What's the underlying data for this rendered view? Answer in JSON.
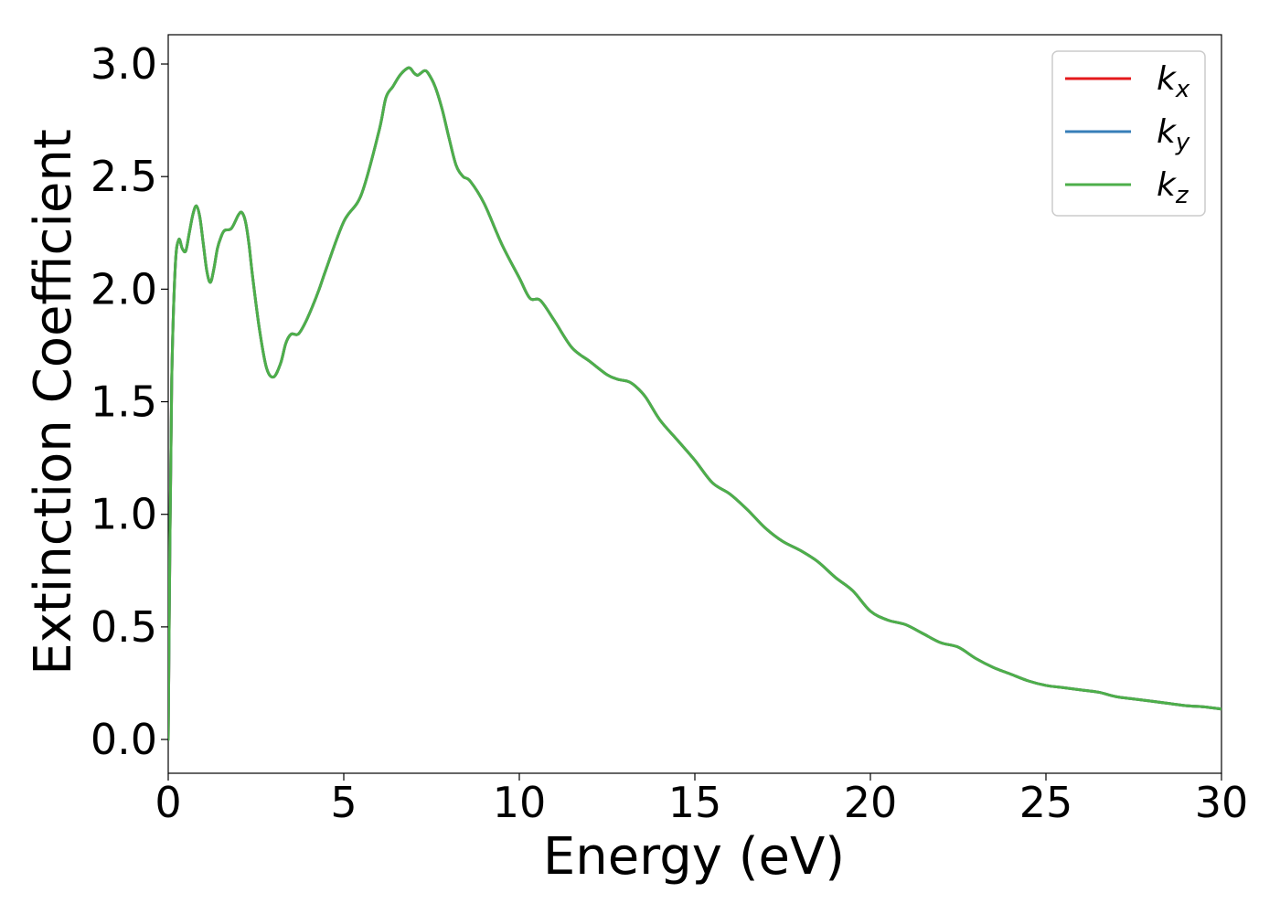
{
  "chart_data": {
    "type": "line",
    "title": "",
    "xlabel": "Energy (eV)",
    "ylabel": "Extinction Coefficient",
    "xlim": [
      0,
      30
    ],
    "ylim": [
      -0.15,
      3.13
    ],
    "xticks": [
      "0",
      "5",
      "10",
      "15",
      "20",
      "25",
      "30"
    ],
    "yticks": [
      "0.0",
      "0.5",
      "1.0",
      "1.5",
      "2.0",
      "2.5",
      "3.0"
    ],
    "grid": false,
    "legend_position": "top-right",
    "x": [
      0,
      0.05,
      0.1,
      0.2,
      0.3,
      0.4,
      0.5,
      0.6,
      0.7,
      0.8,
      0.9,
      1.0,
      1.1,
      1.2,
      1.3,
      1.4,
      1.5,
      1.6,
      1.8,
      2.0,
      2.1,
      2.2,
      2.3,
      2.4,
      2.6,
      2.8,
      3.0,
      3.2,
      3.35,
      3.5,
      3.7,
      3.9,
      4.1,
      4.3,
      4.5,
      5.0,
      5.5,
      6.0,
      6.2,
      6.4,
      6.6,
      6.8,
      6.9,
      7.0,
      7.1,
      7.2,
      7.3,
      7.4,
      7.6,
      7.8,
      8.0,
      8.2,
      8.4,
      8.6,
      9.0,
      9.5,
      10.0,
      10.3,
      10.6,
      11.0,
      11.5,
      12.0,
      12.5,
      12.8,
      13.1,
      13.3,
      13.6,
      14.0,
      14.5,
      15.0,
      15.5,
      16.0,
      16.5,
      17.0,
      17.5,
      18.0,
      18.5,
      19.0,
      19.5,
      20.0,
      20.5,
      21.0,
      21.5,
      22.0,
      22.5,
      23.0,
      23.5,
      24.0,
      24.5,
      25.0,
      25.5,
      26.0,
      26.5,
      27.0,
      27.5,
      28.0,
      28.5,
      29.0,
      29.5,
      30.0
    ],
    "series": [
      {
        "name": "k_x",
        "color": "#e41a1c",
        "values": [
          0.0,
          0.9,
          1.6,
          2.1,
          2.22,
          2.18,
          2.17,
          2.25,
          2.33,
          2.37,
          2.32,
          2.2,
          2.08,
          2.03,
          2.09,
          2.18,
          2.23,
          2.26,
          2.27,
          2.33,
          2.34,
          2.3,
          2.2,
          2.06,
          1.82,
          1.65,
          1.61,
          1.67,
          1.76,
          1.8,
          1.8,
          1.85,
          1.92,
          2.0,
          2.09,
          2.3,
          2.42,
          2.7,
          2.85,
          2.9,
          2.95,
          2.98,
          2.98,
          2.96,
          2.95,
          2.96,
          2.97,
          2.96,
          2.9,
          2.8,
          2.67,
          2.55,
          2.5,
          2.48,
          2.38,
          2.2,
          2.05,
          1.96,
          1.95,
          1.86,
          1.74,
          1.68,
          1.62,
          1.6,
          1.59,
          1.57,
          1.52,
          1.42,
          1.33,
          1.24,
          1.14,
          1.09,
          1.02,
          0.94,
          0.88,
          0.84,
          0.79,
          0.72,
          0.66,
          0.57,
          0.53,
          0.51,
          0.47,
          0.43,
          0.41,
          0.36,
          0.32,
          0.29,
          0.26,
          0.24,
          0.23,
          0.22,
          0.21,
          0.19,
          0.18,
          0.17,
          0.16,
          0.15,
          0.145,
          0.135
        ]
      },
      {
        "name": "k_y",
        "color": "#377eb8",
        "values": [
          0.0,
          0.9,
          1.6,
          2.1,
          2.22,
          2.18,
          2.17,
          2.25,
          2.33,
          2.37,
          2.32,
          2.2,
          2.08,
          2.03,
          2.09,
          2.18,
          2.23,
          2.26,
          2.27,
          2.33,
          2.34,
          2.3,
          2.2,
          2.06,
          1.82,
          1.65,
          1.61,
          1.67,
          1.76,
          1.8,
          1.8,
          1.85,
          1.92,
          2.0,
          2.09,
          2.3,
          2.42,
          2.7,
          2.85,
          2.9,
          2.95,
          2.98,
          2.98,
          2.96,
          2.95,
          2.96,
          2.97,
          2.96,
          2.9,
          2.8,
          2.67,
          2.55,
          2.5,
          2.48,
          2.38,
          2.2,
          2.05,
          1.96,
          1.95,
          1.86,
          1.74,
          1.68,
          1.62,
          1.6,
          1.59,
          1.57,
          1.52,
          1.42,
          1.33,
          1.24,
          1.14,
          1.09,
          1.02,
          0.94,
          0.88,
          0.84,
          0.79,
          0.72,
          0.66,
          0.57,
          0.53,
          0.51,
          0.47,
          0.43,
          0.41,
          0.36,
          0.32,
          0.29,
          0.26,
          0.24,
          0.23,
          0.22,
          0.21,
          0.19,
          0.18,
          0.17,
          0.16,
          0.15,
          0.145,
          0.135
        ]
      },
      {
        "name": "k_z",
        "color": "#4daf4a",
        "values": [
          0.0,
          0.9,
          1.6,
          2.1,
          2.22,
          2.18,
          2.17,
          2.25,
          2.33,
          2.37,
          2.32,
          2.2,
          2.08,
          2.03,
          2.09,
          2.18,
          2.23,
          2.26,
          2.27,
          2.33,
          2.34,
          2.3,
          2.2,
          2.06,
          1.82,
          1.65,
          1.61,
          1.67,
          1.76,
          1.8,
          1.8,
          1.85,
          1.92,
          2.0,
          2.09,
          2.3,
          2.42,
          2.7,
          2.85,
          2.9,
          2.95,
          2.98,
          2.98,
          2.96,
          2.95,
          2.96,
          2.97,
          2.96,
          2.9,
          2.8,
          2.67,
          2.55,
          2.5,
          2.48,
          2.38,
          2.2,
          2.05,
          1.96,
          1.95,
          1.86,
          1.74,
          1.68,
          1.62,
          1.6,
          1.59,
          1.57,
          1.52,
          1.42,
          1.33,
          1.24,
          1.14,
          1.09,
          1.02,
          0.94,
          0.88,
          0.84,
          0.79,
          0.72,
          0.66,
          0.57,
          0.53,
          0.51,
          0.47,
          0.43,
          0.41,
          0.36,
          0.32,
          0.29,
          0.26,
          0.24,
          0.23,
          0.22,
          0.21,
          0.19,
          0.18,
          0.17,
          0.16,
          0.15,
          0.145,
          0.135
        ]
      }
    ],
    "legend": [
      {
        "base": "k",
        "sub": "x"
      },
      {
        "base": "k",
        "sub": "y"
      },
      {
        "base": "k",
        "sub": "z"
      }
    ]
  }
}
